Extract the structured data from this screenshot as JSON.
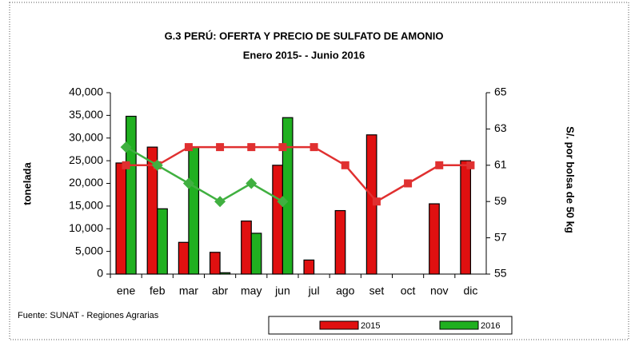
{
  "chart_data": {
    "type": "bar_line",
    "title": "G.3  PERÚ: OFERTA Y PRECIO DE  SULFATO DE AMONIO",
    "subtitle": "Enero 2015-  - Junio  2016",
    "y_label": "tonelada",
    "y2_label": "S/.  por bolsa de 50 kg",
    "source": "Fuente: SUNAT - Regiones Agrarias",
    "categories": [
      "ene",
      "feb",
      "mar",
      "abr",
      "may",
      "jun",
      "jul",
      "ago",
      "set",
      "oct",
      "nov",
      "dic"
    ],
    "series": [
      {
        "name": "2015",
        "color": "#e01010",
        "line_color": "#e03030",
        "values": [
          24500,
          28000,
          7000,
          4800,
          11700,
          24000,
          3100,
          14000,
          30700,
          null,
          15500,
          25000
        ],
        "price_values": [
          61,
          61,
          62,
          62,
          62,
          62,
          62,
          61,
          59,
          60,
          61,
          61
        ]
      },
      {
        "name": "2016",
        "color": "#20b020",
        "line_color": "#40b040",
        "values": [
          34800,
          14400,
          28000,
          300,
          9000,
          34500,
          null,
          null,
          null,
          null,
          null,
          null
        ],
        "price_values": [
          62,
          61,
          60,
          59,
          60,
          59,
          null,
          null,
          null,
          null,
          null,
          null
        ]
      }
    ],
    "ylim": [
      0,
      40000
    ],
    "yticks": [
      {
        "value": 0,
        "label": "0"
      },
      {
        "value": 5000,
        "label": "5,000"
      },
      {
        "value": 10000,
        "label": "10,000"
      },
      {
        "value": 15000,
        "label": "15,000"
      },
      {
        "value": 20000,
        "label": "20,000"
      },
      {
        "value": 25000,
        "label": "25,000"
      },
      {
        "value": 30000,
        "label": "30,000"
      },
      {
        "value": 35000,
        "label": "35,000"
      },
      {
        "value": 40000,
        "label": "40,000"
      }
    ],
    "y2lim": [
      55,
      65
    ],
    "y2ticks": [
      55,
      57,
      59,
      61,
      63,
      65
    ],
    "grid": false,
    "legend": "bottom"
  }
}
